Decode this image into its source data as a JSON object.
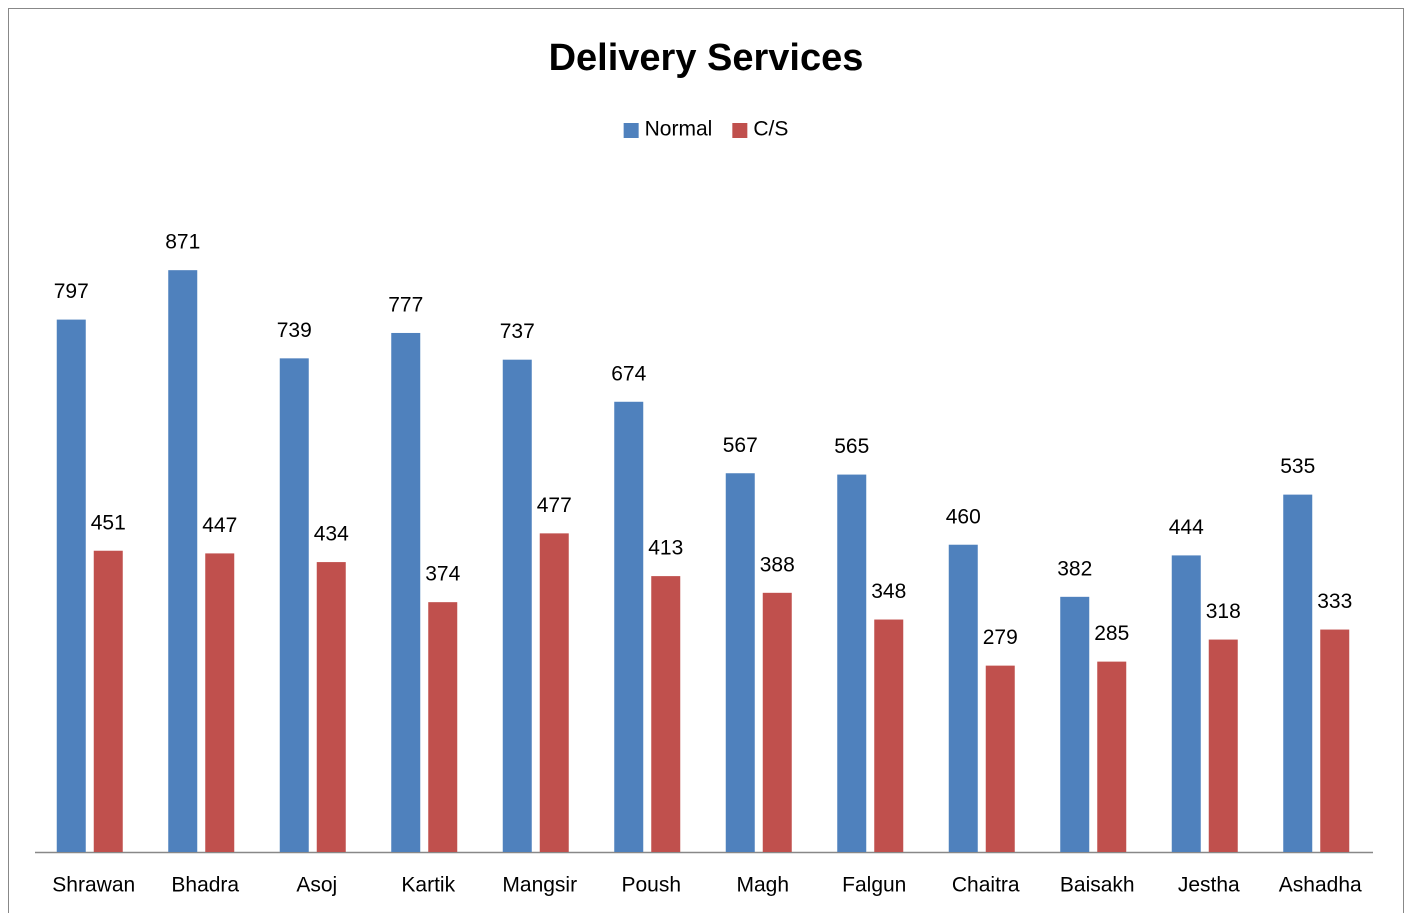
{
  "chart_data": {
    "type": "bar",
    "title": "Delivery Services",
    "categories": [
      "Shrawan",
      "Bhadra",
      "Asoj",
      "Kartik",
      "Mangsir",
      "Poush",
      "Magh",
      "Falgun",
      "Chaitra",
      "Baisakh",
      "Jestha",
      "Ashadha"
    ],
    "series": [
      {
        "name": "Normal",
        "color": "#4f81bd",
        "values": [
          797,
          871,
          739,
          777,
          737,
          674,
          567,
          565,
          460,
          382,
          444,
          535
        ]
      },
      {
        "name": "C/S",
        "color": "#c0504d",
        "values": [
          451,
          447,
          434,
          374,
          477,
          413,
          388,
          348,
          279,
          285,
          318,
          333
        ]
      }
    ],
    "ylim": [
      0,
      1000
    ],
    "legend": "top",
    "grid": false
  }
}
